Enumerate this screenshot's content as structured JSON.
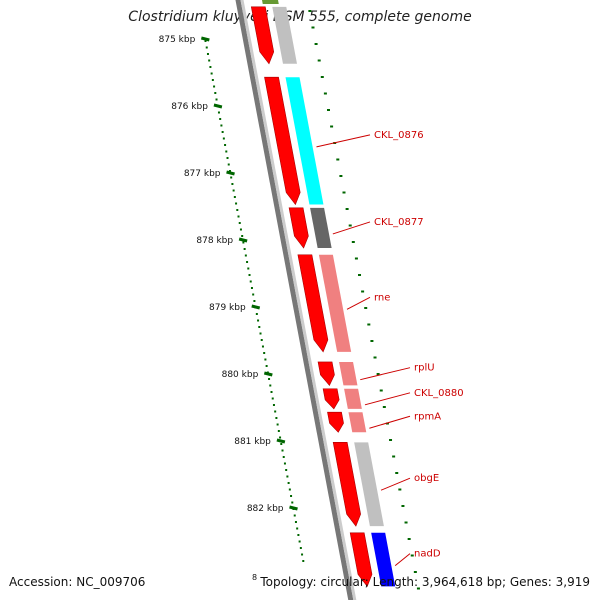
{
  "title": "Clostridium kluyveri DSM 555, complete genome",
  "accession": "Accession: NC_009706",
  "topology": "Topology: circular; Length: 3,964,618 bp; Genes: 3,919",
  "cut_tick_label": "8",
  "colors": {
    "backbone_dark": "#777777",
    "backbone_light": "#cccccc",
    "gene_red": "#ff0000",
    "tick_green": "#006600",
    "label_red": "#cc0000",
    "cog_cyan": "#00ffff",
    "cog_dark_gray": "#666666",
    "cog_salmon": "#f08080",
    "cog_light_gray": "#c0c0c0",
    "cog_blue": "#0000ff",
    "cog_olive": "#669933"
  },
  "kbp_ticks": [
    {
      "kbp": 875,
      "label": "875 kbp"
    },
    {
      "kbp": 876,
      "label": "876 kbp"
    },
    {
      "kbp": 877,
      "label": "877 kbp"
    },
    {
      "kbp": 878,
      "label": "878 kbp"
    },
    {
      "kbp": 879,
      "label": "879 kbp"
    },
    {
      "kbp": 880,
      "label": "880 kbp"
    },
    {
      "kbp": 881,
      "label": "881 kbp"
    },
    {
      "kbp": 882,
      "label": "882 kbp"
    }
  ],
  "genes": [
    {
      "start_kbp": 874.55,
      "end_kbp": 875.4,
      "cog_color": "#c0c0c0"
    },
    {
      "start_kbp": 875.6,
      "end_kbp": 877.5,
      "label": "CKL_0876",
      "cog_color": "#00ffff"
    },
    {
      "start_kbp": 877.55,
      "end_kbp": 878.15,
      "label": "CKL_0877",
      "cog_color": "#666666"
    },
    {
      "start_kbp": 878.25,
      "end_kbp": 879.7,
      "label": "rne",
      "cog_color": "#f08080"
    },
    {
      "start_kbp": 879.85,
      "end_kbp": 880.2,
      "label": "rplU",
      "cog_color": "#f08080"
    },
    {
      "start_kbp": 880.25,
      "end_kbp": 880.55,
      "label": "CKL_0880",
      "cog_color": "#f08080"
    },
    {
      "start_kbp": 880.6,
      "end_kbp": 880.9,
      "label": "rpmA",
      "cog_color": "#f08080"
    },
    {
      "start_kbp": 881.05,
      "end_kbp": 882.3,
      "label": "obgE",
      "cog_color": "#c0c0c0"
    },
    {
      "start_kbp": 882.4,
      "end_kbp": 883.2,
      "label": "nadD",
      "cog_color": "#0000ff"
    }
  ]
}
